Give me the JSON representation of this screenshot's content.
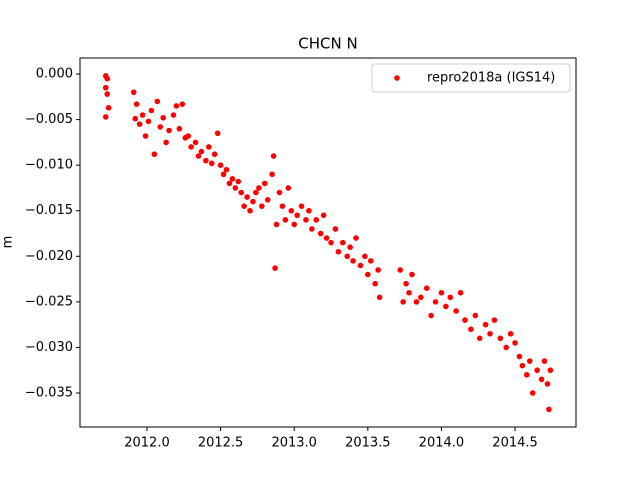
{
  "chart_data": {
    "type": "scatter",
    "title": "CHCN N",
    "y_label": "m",
    "legend": "upper right",
    "xlim": [
      2011.545,
      2014.914
    ],
    "ylim": [
      -0.03873,
      0.00176
    ],
    "xticks": [
      {
        "value": 2012,
        "label": "2012.0"
      },
      {
        "value": 2012.5,
        "label": "2012.5"
      },
      {
        "value": 2013,
        "label": "2013.0"
      },
      {
        "value": 2013.5,
        "label": "2013.5"
      },
      {
        "value": 2014,
        "label": "2014.0"
      },
      {
        "value": 2014.5,
        "label": "2014.5"
      }
    ],
    "yticks": [
      {
        "value": 0,
        "label": "0.000"
      },
      {
        "value": -0.005,
        "label": "−0.005"
      },
      {
        "value": -0.01,
        "label": "−0.010"
      },
      {
        "value": -0.015,
        "label": "−0.015"
      },
      {
        "value": -0.02,
        "label": "−0.020"
      },
      {
        "value": -0.025,
        "label": "−0.025"
      },
      {
        "value": -0.03,
        "label": "−0.030"
      },
      {
        "value": -0.035,
        "label": "−0.035"
      }
    ],
    "series": [
      {
        "name": "repro2018a (IGS14)",
        "color": "#ff0000",
        "x": [
          2011.72,
          2011.72,
          2011.73,
          2011.72,
          2011.74,
          2011.73,
          2011.91,
          2011.92,
          2011.93,
          2011.95,
          2011.97,
          2011.99,
          2012.01,
          2012.03,
          2012.05,
          2012.07,
          2012.09,
          2012.11,
          2012.13,
          2012.15,
          2012.18,
          2012.2,
          2012.22,
          2012.24,
          2012.26,
          2012.28,
          2012.3,
          2012.33,
          2012.35,
          2012.37,
          2012.4,
          2012.42,
          2012.44,
          2012.46,
          2012.48,
          2012.5,
          2012.52,
          2012.54,
          2012.56,
          2012.58,
          2012.6,
          2012.62,
          2012.64,
          2012.66,
          2012.68,
          2012.7,
          2012.72,
          2012.74,
          2012.76,
          2012.78,
          2012.8,
          2012.82,
          2012.85,
          2012.86,
          2012.87,
          2012.88,
          2012.9,
          2012.92,
          2012.94,
          2012.96,
          2012.98,
          2013.0,
          2013.02,
          2013.05,
          2013.08,
          2013.1,
          2013.12,
          2013.15,
          2013.18,
          2013.2,
          2013.22,
          2013.25,
          2013.28,
          2013.3,
          2013.33,
          2013.36,
          2013.38,
          2013.4,
          2013.42,
          2013.45,
          2013.48,
          2013.5,
          2013.52,
          2013.55,
          2013.58,
          2013.57,
          2013.72,
          2013.74,
          2013.76,
          2013.78,
          2013.8,
          2013.83,
          2013.86,
          2013.9,
          2013.93,
          2013.96,
          2014.0,
          2014.03,
          2014.06,
          2014.1,
          2014.13,
          2014.16,
          2014.2,
          2014.23,
          2014.26,
          2014.3,
          2014.33,
          2014.36,
          2014.4,
          2014.44,
          2014.47,
          2014.5,
          2014.53,
          2014.55,
          2014.58,
          2014.6,
          2014.62,
          2014.65,
          2014.68,
          2014.7,
          2014.72,
          2014.73,
          2014.74
        ],
        "values": [
          -0.0002,
          -0.0015,
          -0.0022,
          -0.0047,
          -0.0037,
          -0.0005,
          -0.002,
          -0.0049,
          -0.0033,
          -0.0055,
          -0.0045,
          -0.0068,
          -0.0052,
          -0.004,
          -0.0088,
          -0.003,
          -0.0058,
          -0.0048,
          -0.0075,
          -0.0062,
          -0.0045,
          -0.0035,
          -0.006,
          -0.0033,
          -0.007,
          -0.0068,
          -0.008,
          -0.0075,
          -0.009,
          -0.0085,
          -0.0095,
          -0.008,
          -0.0098,
          -0.0088,
          -0.0065,
          -0.01,
          -0.011,
          -0.0105,
          -0.012,
          -0.0115,
          -0.0125,
          -0.0118,
          -0.013,
          -0.0145,
          -0.0135,
          -0.015,
          -0.014,
          -0.013,
          -0.0125,
          -0.0145,
          -0.012,
          -0.0138,
          -0.011,
          -0.009,
          -0.0213,
          -0.0165,
          -0.013,
          -0.0145,
          -0.016,
          -0.0125,
          -0.015,
          -0.0165,
          -0.0155,
          -0.0145,
          -0.016,
          -0.015,
          -0.017,
          -0.016,
          -0.0175,
          -0.0155,
          -0.018,
          -0.0185,
          -0.017,
          -0.0195,
          -0.0185,
          -0.02,
          -0.019,
          -0.0205,
          -0.018,
          -0.021,
          -0.02,
          -0.022,
          -0.0205,
          -0.023,
          -0.0245,
          -0.0215,
          -0.0215,
          -0.025,
          -0.023,
          -0.024,
          -0.022,
          -0.025,
          -0.0245,
          -0.0235,
          -0.0265,
          -0.025,
          -0.024,
          -0.0255,
          -0.0245,
          -0.026,
          -0.024,
          -0.027,
          -0.028,
          -0.0265,
          -0.029,
          -0.0275,
          -0.0285,
          -0.027,
          -0.029,
          -0.03,
          -0.0285,
          -0.0295,
          -0.031,
          -0.032,
          -0.033,
          -0.0315,
          -0.035,
          -0.0325,
          -0.0335,
          -0.0315,
          -0.034,
          -0.0368,
          -0.0325
        ]
      }
    ]
  }
}
